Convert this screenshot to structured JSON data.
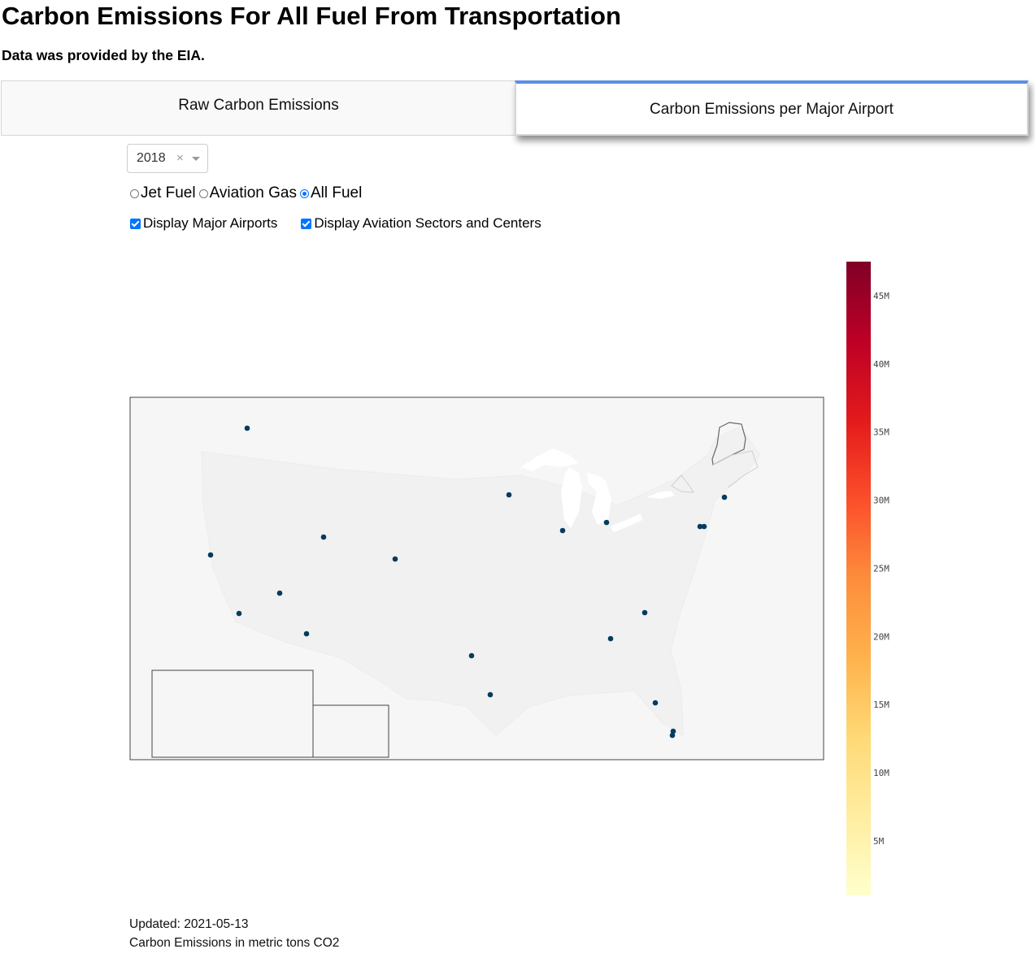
{
  "header": {
    "title": "Carbon Emissions For All Fuel From Transportation",
    "subtitle": "Data was provided by the EIA."
  },
  "tabs": [
    {
      "label": "Raw Carbon Emissions",
      "active": false
    },
    {
      "label": "Carbon Emissions per Major Airport",
      "active": true
    }
  ],
  "controls": {
    "year_select": {
      "value": "2018",
      "clear_symbol": "×"
    },
    "fuel_options": [
      {
        "label": "Jet Fuel",
        "checked": false
      },
      {
        "label": "Aviation Gas",
        "checked": false
      },
      {
        "label": "All Fuel",
        "checked": true
      }
    ],
    "checkboxes": [
      {
        "label": "Display Major Airports",
        "checked": true
      },
      {
        "label": "Display Aviation Sectors and Centers",
        "checked": true
      }
    ]
  },
  "colorbar": {
    "tick_labels": [
      "45M",
      "40M",
      "35M",
      "30M",
      "25M",
      "20M",
      "15M",
      "10M",
      "5M"
    ],
    "tick_values": [
      45,
      40,
      35,
      30,
      25,
      20,
      15,
      10,
      5
    ],
    "range": [
      1,
      47.5
    ],
    "colors": [
      "#ffffcc",
      "#ffeda0",
      "#fed976",
      "#feb24c",
      "#fd8d3c",
      "#fc4e2a",
      "#e31a1c",
      "#bd0026",
      "#800026"
    ]
  },
  "map": {
    "background": "#f6f6f6",
    "land": "#f1f1f1",
    "lakes": "#ffffff",
    "airport_marker_color": "#053b5e"
  },
  "footer": {
    "updated": "Updated: 2021-05-13",
    "units": "Carbon Emissions in metric tons CO2"
  }
}
